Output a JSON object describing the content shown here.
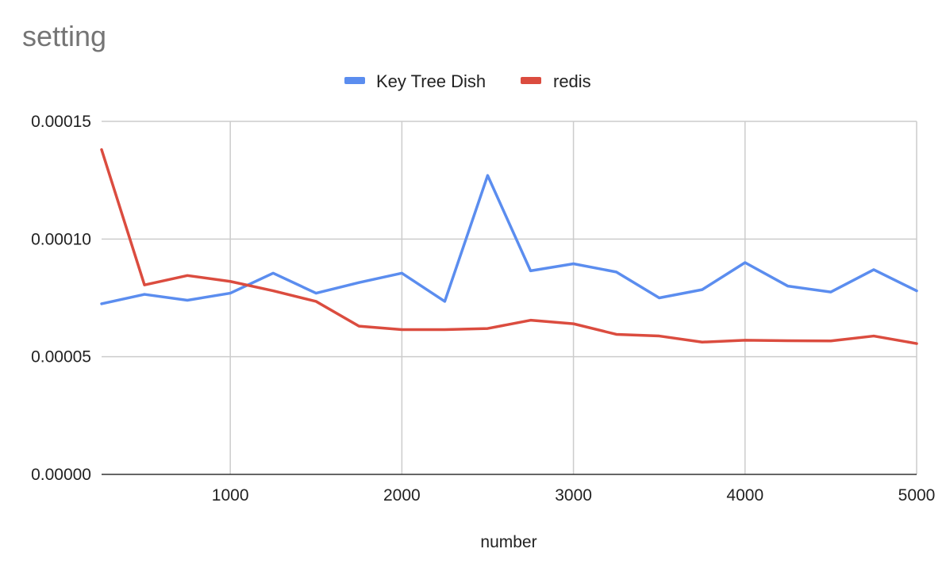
{
  "chart_data": {
    "type": "line",
    "title": "setting",
    "xlabel": "number",
    "ylabel": "",
    "xlim": [
      250,
      5000
    ],
    "ylim": [
      0,
      0.00015
    ],
    "x_ticks": [
      1000,
      2000,
      3000,
      4000,
      5000
    ],
    "x_tick_labels": [
      "1000",
      "2000",
      "3000",
      "4000",
      "5000"
    ],
    "y_ticks": [
      0,
      5e-05,
      0.0001,
      0.00015
    ],
    "y_tick_labels": [
      "0.00000",
      "0.00005",
      "0.00010",
      "0.00015"
    ],
    "grid": true,
    "legend_position": "top",
    "x": [
      250,
      500,
      750,
      1000,
      1250,
      1500,
      1750,
      2000,
      2250,
      2500,
      2750,
      3000,
      3250,
      3500,
      3750,
      4000,
      4250,
      4500,
      4750,
      5000
    ],
    "series": [
      {
        "name": "Key Tree Dish",
        "color": "#5b8def",
        "values": [
          7.25e-05,
          7.65e-05,
          7.4e-05,
          7.7e-05,
          8.55e-05,
          7.7e-05,
          8.15e-05,
          8.55e-05,
          7.35e-05,
          0.000127,
          8.65e-05,
          8.95e-05,
          8.6e-05,
          7.5e-05,
          7.85e-05,
          9e-05,
          8e-05,
          7.75e-05,
          8.7e-05,
          7.8e-05
        ]
      },
      {
        "name": "redis",
        "color": "#db4c3f",
        "values": [
          0.000138,
          8.05e-05,
          8.45e-05,
          8.2e-05,
          7.8e-05,
          7.35e-05,
          6.3e-05,
          6.15e-05,
          6.15e-05,
          6.2e-05,
          6.55e-05,
          6.4e-05,
          5.95e-05,
          5.88e-05,
          5.62e-05,
          5.7e-05,
          5.68e-05,
          5.67e-05,
          5.88e-05,
          5.56e-05
        ]
      }
    ]
  }
}
